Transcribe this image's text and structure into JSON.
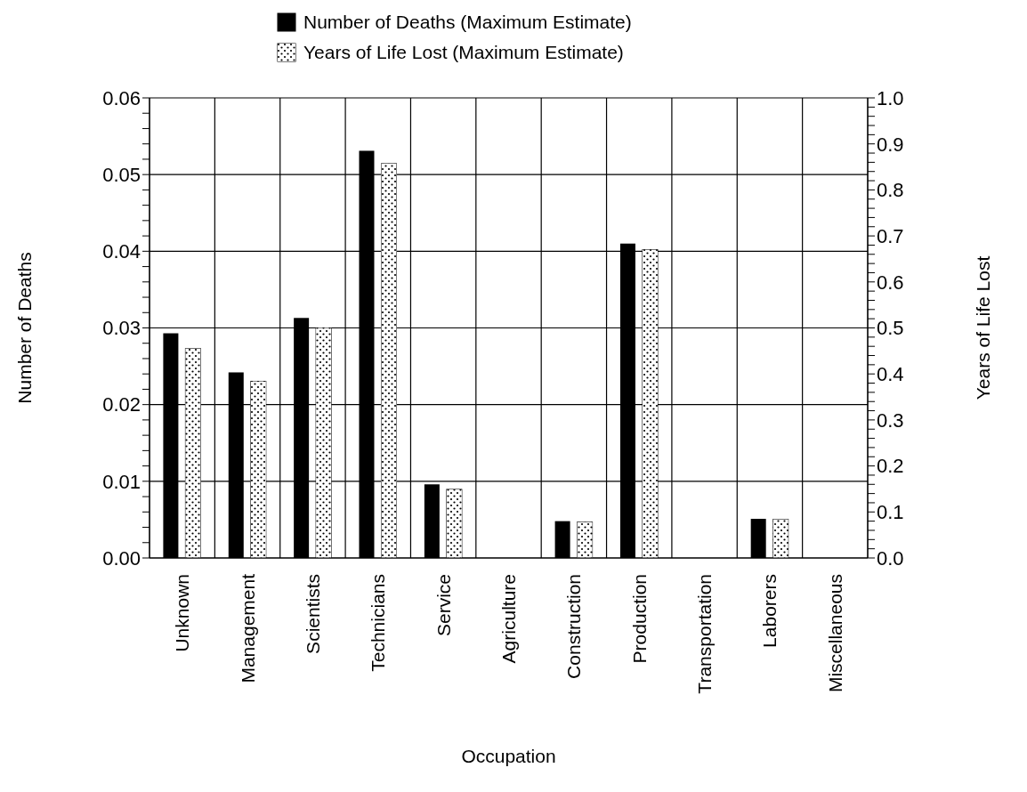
{
  "chart_data": {
    "type": "bar",
    "xlabel": "Occupation",
    "ylabel": "Number of Deaths",
    "y2label": "Years of Life Lost",
    "categories": [
      "Unknown",
      "Management",
      "Scientists",
      "Technicians",
      "Service",
      "Agriculture",
      "Construction",
      "Production",
      "Transportation",
      "Laborers",
      "Miscellaneous"
    ],
    "series": [
      {
        "name": "Number of Deaths (Maximum Estimate)",
        "color": "#000000",
        "values": [
          0.0293,
          0.0242,
          0.0313,
          0.0531,
          0.0096,
          0,
          0.0048,
          0.041,
          0,
          0.0051,
          0
        ]
      },
      {
        "name": "Years of Life Lost (Maximum Estimate)",
        "color": "#ffffff",
        "axis": "y2",
        "values": [
          0.455,
          0.384,
          0.5,
          0.857,
          0.149,
          0,
          0.078,
          0.67,
          0,
          0.084,
          0
        ]
      }
    ],
    "ylim": [
      0,
      0.06
    ],
    "yticks": [
      {
        "value": 0,
        "label": "0.00"
      },
      {
        "value": 0.002,
        "label": null
      },
      {
        "value": 0.004,
        "label": null
      },
      {
        "value": 0.006,
        "label": null
      },
      {
        "value": 0.008,
        "label": null
      },
      {
        "value": 0.01,
        "label": "0.01"
      },
      {
        "value": 0.012,
        "label": null
      },
      {
        "value": 0.014,
        "label": null
      },
      {
        "value": 0.016,
        "label": null
      },
      {
        "value": 0.018,
        "label": null
      },
      {
        "value": 0.02,
        "label": "0.02"
      },
      {
        "value": 0.022,
        "label": null
      },
      {
        "value": 0.024,
        "label": null
      },
      {
        "value": 0.026,
        "label": null
      },
      {
        "value": 0.028,
        "label": null
      },
      {
        "value": 0.03,
        "label": "0.03"
      },
      {
        "value": 0.032,
        "label": null
      },
      {
        "value": 0.034,
        "label": null
      },
      {
        "value": 0.036,
        "label": null
      },
      {
        "value": 0.038,
        "label": null
      },
      {
        "value": 0.04,
        "label": "0.04"
      },
      {
        "value": 0.042,
        "label": null
      },
      {
        "value": 0.044,
        "label": null
      },
      {
        "value": 0.046,
        "label": null
      },
      {
        "value": 0.048,
        "label": null
      },
      {
        "value": 0.05,
        "label": "0.05"
      },
      {
        "value": 0.052,
        "label": null
      },
      {
        "value": 0.054,
        "label": null
      },
      {
        "value": 0.056,
        "label": null
      },
      {
        "value": 0.058,
        "label": null
      },
      {
        "value": 0.06,
        "label": "0.06"
      }
    ],
    "y2lim": [
      0,
      1
    ],
    "y2ticks": [
      {
        "value": 0,
        "label": "0.0"
      },
      {
        "value": 0.02,
        "label": null
      },
      {
        "value": 0.04,
        "label": null
      },
      {
        "value": 0.06,
        "label": null
      },
      {
        "value": 0.08,
        "label": null
      },
      0.1,
      {
        "value": 0.12,
        "label": null
      },
      {
        "value": 0.14,
        "label": null
      },
      {
        "value": 0.16,
        "label": null
      },
      {
        "value": 0.18,
        "label": null
      },
      0.2,
      {
        "value": 0.22,
        "label": null
      },
      {
        "value": 0.24,
        "label": null
      },
      {
        "value": 0.26,
        "label": null
      },
      {
        "value": 0.28,
        "label": null
      },
      0.3,
      {
        "value": 0.32,
        "label": null
      },
      {
        "value": 0.34,
        "label": null
      },
      {
        "value": 0.36,
        "label": null
      },
      {
        "value": 0.38,
        "label": null
      },
      0.4,
      {
        "value": 0.42,
        "label": null
      },
      {
        "value": 0.44,
        "label": null
      },
      {
        "value": 0.46,
        "label": null
      },
      {
        "value": 0.48,
        "label": null
      },
      0.5,
      {
        "value": 0.52,
        "label": null
      },
      {
        "value": 0.54,
        "label": null
      },
      {
        "value": 0.56,
        "label": null
      },
      {
        "value": 0.58,
        "label": null
      },
      0.6,
      {
        "value": 0.62,
        "label": null
      },
      {
        "value": 0.64,
        "label": null
      },
      {
        "value": 0.66,
        "label": null
      },
      {
        "value": 0.68,
        "label": null
      },
      0.7,
      {
        "value": 0.72,
        "label": null
      },
      {
        "value": 0.74,
        "label": null
      },
      {
        "value": 0.76,
        "label": null
      },
      {
        "value": 0.78,
        "label": null
      },
      0.8,
      {
        "value": 0.82,
        "label": null
      },
      {
        "value": 0.84,
        "label": null
      },
      {
        "value": 0.86,
        "label": null
      },
      {
        "value": 0.88,
        "label": null
      },
      0.9,
      {
        "value": 0.92,
        "label": null
      },
      {
        "value": 0.94,
        "label": null
      },
      {
        "value": 0.96,
        "label": null
      },
      {
        "value": 0.98,
        "label": null
      },
      {
        "value": 1,
        "label": "1.0"
      }
    ],
    "grid": true,
    "legend": "top"
  }
}
